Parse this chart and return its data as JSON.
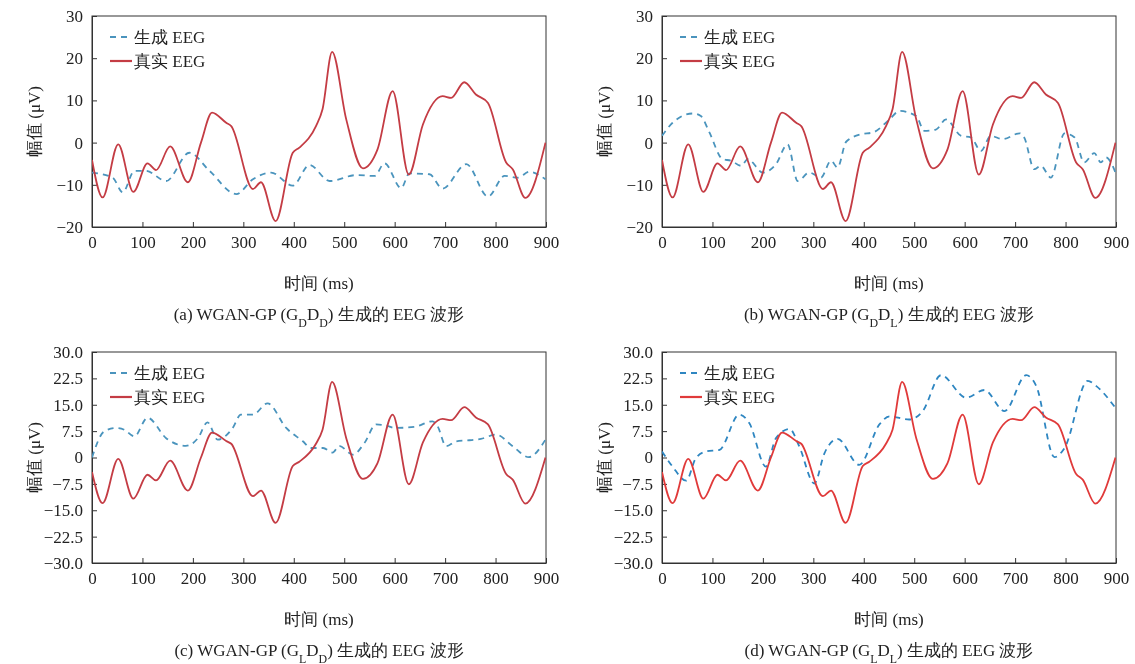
{
  "chart_data": [
    {
      "type": "line",
      "title": "(a) WGAN-GP (G$_{D}$D$_{D}$) 生成的 EEG 波形",
      "xlabel": "时间 (ms)",
      "ylabel": "幅值 (μV)",
      "xlim": [
        0,
        900
      ],
      "xticks": [
        0,
        100,
        200,
        300,
        400,
        500,
        600,
        700,
        800,
        900
      ],
      "ylim": [
        -20,
        30
      ],
      "yticks": [
        {
          "value": -20,
          "label": "−20"
        },
        {
          "value": -10,
          "label": "−10"
        },
        0,
        10,
        20,
        30
      ],
      "legend": "top left",
      "grid": false,
      "series": [
        {
          "name": "生成 EEG",
          "color": "#4a94bd",
          "line_style": "dashed",
          "x": [
            0,
            41,
            61,
            84,
            107,
            147,
            193,
            233,
            286,
            319,
            355,
            398,
            431,
            471,
            524,
            560,
            580,
            613,
            629,
            669,
            695,
            742,
            785,
            818,
            844,
            867,
            899
          ],
          "values": [
            -7.1,
            -8.3,
            -11.8,
            -6.7,
            -6.7,
            -9.1,
            -2.4,
            -6.7,
            -12.2,
            -8.7,
            -7.1,
            -10.2,
            -5.3,
            -9.1,
            -7.7,
            -7.9,
            -4.9,
            -10.8,
            -7.3,
            -7.5,
            -10.9,
            -5.1,
            -12.8,
            -7.9,
            -8.3,
            -6.9,
            -8.7
          ]
        },
        {
          "name": "真实 EEG",
          "color": "#c43c44",
          "line_style": "solid",
          "x": [
            0,
            21,
            52,
            82,
            110,
            127,
            155,
            190,
            216,
            238,
            266,
            276,
            319,
            335,
            364,
            398,
            411,
            444,
            457,
            476,
            504,
            537,
            566,
            596,
            628,
            656,
            695,
            712,
            738,
            761,
            785,
            821,
            834,
            859,
            899
          ],
          "values": [
            -4.1,
            -13,
            -0.4,
            -11.7,
            -4.9,
            -6.5,
            -0.9,
            -9.4,
            0,
            7.1,
            4.7,
            3.9,
            -11,
            -9.4,
            -18.6,
            -2.4,
            -1.2,
            3.9,
            7.9,
            21.5,
            5.5,
            -6.1,
            -1.6,
            12.2,
            -7.6,
            4.3,
            11,
            10.6,
            14.3,
            11.4,
            9.4,
            -4.7,
            -6.3,
            -13.1,
            0
          ]
        }
      ]
    },
    {
      "type": "line",
      "title": "(b) WGAN-GP (G$_{D}$D$_{L}$) 生成的 EEG 波形",
      "xlabel": "时间 (ms)",
      "ylabel": "幅值 (μV)",
      "xlim": [
        0,
        900
      ],
      "xticks": [
        0,
        100,
        200,
        300,
        400,
        500,
        600,
        700,
        800,
        900
      ],
      "ylim": [
        -20,
        30
      ],
      "yticks": [
        {
          "value": -20,
          "label": "−20"
        },
        {
          "value": -10,
          "label": "−10"
        },
        0,
        10,
        20,
        30
      ],
      "legend": "top left",
      "grid": false,
      "series": [
        {
          "name": "生成 EEG",
          "color": "#4a94bd",
          "line_style": "dashed",
          "x": [
            0,
            21,
            61,
            77,
            94,
            120,
            137,
            157,
            170,
            200,
            226,
            249,
            269,
            292,
            315,
            335,
            348,
            365,
            395,
            418,
            451,
            471,
            504,
            520,
            543,
            563,
            593,
            613,
            632,
            652,
            675,
            709,
            718,
            738,
            751,
            771,
            798,
            818,
            837,
            857,
            870,
            880,
            899
          ],
          "values": [
            1.6,
            4.7,
            6.9,
            6.3,
            2.4,
            -3.9,
            -4.3,
            -5.5,
            -3.9,
            -7.1,
            -5.1,
            -0.4,
            -9.1,
            -7.1,
            -8.3,
            -4.3,
            -5.9,
            0.2,
            2,
            2.4,
            5.5,
            7.5,
            6.3,
            2.8,
            3.1,
            5.5,
            1.6,
            1.2,
            -2,
            1.6,
            0.8,
            2.2,
            1.2,
            -6.3,
            -5.5,
            -8.3,
            2.2,
            1.2,
            -4.7,
            -2.5,
            -4.7,
            -3.5,
            -7.1
          ]
        },
        {
          "name": "真实 EEG",
          "color": "#c43c44",
          "line_style": "solid",
          "x": [
            0,
            21,
            52,
            82,
            110,
            127,
            155,
            190,
            216,
            238,
            266,
            276,
            319,
            335,
            364,
            398,
            411,
            444,
            457,
            476,
            504,
            537,
            566,
            596,
            628,
            656,
            695,
            712,
            738,
            761,
            785,
            821,
            834,
            859,
            899
          ],
          "values": [
            -4.1,
            -13,
            -0.4,
            -11.7,
            -4.9,
            -6.5,
            -0.9,
            -9.4,
            0,
            7.1,
            4.7,
            3.9,
            -11,
            -9.4,
            -18.6,
            -2.4,
            -1.2,
            3.9,
            7.9,
            21.5,
            5.5,
            -6.1,
            -1.6,
            12.2,
            -7.6,
            4.3,
            11,
            10.6,
            14.3,
            11.4,
            9.4,
            -4.7,
            -6.3,
            -13.1,
            0
          ]
        }
      ]
    },
    {
      "type": "line",
      "title": "(c) WGAN-GP (G$_{L}$D$_{D}$) 生成的 EEG 波形",
      "xlabel": "时间 (ms)",
      "ylabel": "幅值 (μV)",
      "xlim": [
        0,
        900
      ],
      "xticks": [
        0,
        100,
        200,
        300,
        400,
        500,
        600,
        700,
        800,
        900
      ],
      "ylim": [
        -30,
        30
      ],
      "yticks": [
        {
          "value": -30,
          "label": "−30.0"
        },
        {
          "value": -22.5,
          "label": "−22.5"
        },
        {
          "value": -15,
          "label": "−15.0"
        },
        {
          "value": -7.5,
          "label": "−7.5"
        },
        0,
        7.5,
        {
          "value": 15,
          "label": "15.0"
        },
        22.5,
        {
          "value": 30,
          "label": "30.0"
        }
      ],
      "legend": "top left",
      "grid": false,
      "series": [
        {
          "name": "生成 EEG",
          "color": "#4a94bd",
          "line_style": "dashed",
          "x": [
            0,
            24,
            48,
            64,
            84,
            110,
            147,
            186,
            210,
            229,
            249,
            279,
            295,
            319,
            348,
            385,
            418,
            434,
            458,
            477,
            490,
            517,
            540,
            563,
            583,
            600,
            639,
            675,
            685,
            702,
            722,
            748,
            771,
            801,
            834,
            866,
            899
          ],
          "values": [
            0,
            7.4,
            8.4,
            7.9,
            6,
            11.3,
            5.5,
            3.3,
            5.5,
            10,
            5.1,
            8.4,
            12.2,
            12.2,
            15.4,
            8.4,
            4.6,
            2.7,
            2.7,
            1.4,
            3.3,
            0.8,
            4.1,
            9.4,
            9.1,
            8.4,
            8.7,
            10.3,
            8.9,
            3.2,
            4.6,
            4.9,
            5.3,
            6.5,
            3.2,
            0.1,
            5.1
          ]
        },
        {
          "name": "真实 EEG",
          "color": "#c43c44",
          "line_style": "solid",
          "x": [
            0,
            21,
            52,
            82,
            110,
            127,
            155,
            190,
            216,
            238,
            266,
            276,
            319,
            335,
            364,
            398,
            411,
            444,
            457,
            476,
            504,
            537,
            566,
            596,
            628,
            656,
            695,
            712,
            738,
            761,
            785,
            821,
            834,
            859,
            899
          ],
          "values": [
            -4.1,
            -13,
            -0.4,
            -11.7,
            -4.9,
            -6.5,
            -0.9,
            -9.4,
            0,
            7.1,
            4.7,
            3.9,
            -11,
            -9.4,
            -18.6,
            -2.4,
            -1.2,
            3.9,
            7.9,
            21.5,
            5.5,
            -6.1,
            -1.6,
            12.2,
            -7.6,
            4.3,
            11,
            10.6,
            14.3,
            11.4,
            9.4,
            -4.7,
            -6.3,
            -13.1,
            0
          ]
        }
      ]
    },
    {
      "type": "line",
      "title": "(d) WGAN-GP (G$_{L}$D$_{L}$) 生成的 EEG 波形",
      "xlabel": "时间 (ms)",
      "ylabel": "幅值 (μV)",
      "xlim": [
        0,
        900
      ],
      "xticks": [
        0,
        100,
        200,
        300,
        400,
        500,
        600,
        700,
        800,
        900
      ],
      "ylim": [
        -30,
        30
      ],
      "yticks": [
        {
          "value": -30,
          "label": "−30.0"
        },
        {
          "value": -22.5,
          "label": "−22.5"
        },
        {
          "value": -15,
          "label": "−15.0"
        },
        {
          "value": -7.5,
          "label": "−7.5"
        },
        0,
        7.5,
        {
          "value": 15,
          "label": "15.0"
        },
        22.5,
        {
          "value": 30,
          "label": "30.0"
        }
      ],
      "legend": "top left",
      "grid": false,
      "series": [
        {
          "name": "生成 EEG",
          "color": "#2e86c1",
          "line_style": "dashed",
          "x": [
            0,
            21,
            48,
            67,
            87,
            114,
            153,
            173,
            206,
            226,
            253,
            272,
            302,
            322,
            348,
            391,
            431,
            451,
            490,
            517,
            553,
            603,
            639,
            679,
            722,
            742,
            778,
            798,
            844,
            861,
            899
          ],
          "values": [
            1.7,
            -2.6,
            -6.6,
            -0.2,
            1.7,
            2.2,
            12.2,
            9.8,
            -2.6,
            5.5,
            8.1,
            3.2,
            -7.4,
            1.2,
            5.3,
            -2.1,
            9.4,
            11.7,
            10.8,
            13.2,
            23.4,
            17,
            19.2,
            13.2,
            23.4,
            20.3,
            0.1,
            2.7,
            21.8,
            20.3,
            14.1
          ]
        },
        {
          "name": "真实 EEG",
          "color": "#e03a3a",
          "line_style": "solid",
          "x": [
            0,
            21,
            52,
            82,
            110,
            127,
            155,
            190,
            216,
            238,
            266,
            276,
            319,
            335,
            364,
            398,
            411,
            444,
            457,
            476,
            504,
            537,
            566,
            596,
            628,
            656,
            695,
            712,
            738,
            761,
            785,
            821,
            834,
            859,
            899
          ],
          "values": [
            -4.1,
            -13,
            -0.4,
            -11.7,
            -4.9,
            -6.5,
            -0.9,
            -9.4,
            0,
            7.1,
            4.7,
            3.9,
            -11,
            -9.4,
            -18.6,
            -2.4,
            -1.2,
            3.9,
            7.9,
            21.5,
            5.5,
            -6.1,
            -1.6,
            12.2,
            -7.6,
            4.3,
            11,
            10.6,
            14.3,
            11.4,
            9.4,
            -4.7,
            -6.3,
            -13.1,
            0
          ]
        }
      ]
    }
  ]
}
